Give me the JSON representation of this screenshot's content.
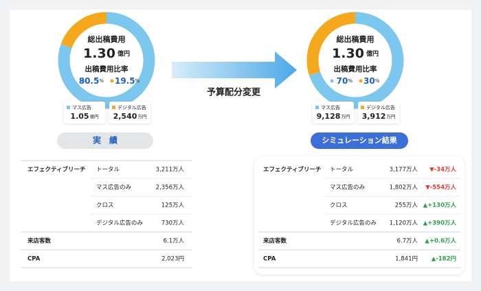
{
  "chart_data": [
    {
      "type": "pie",
      "title": "総出稿費用",
      "total": "1.30",
      "total_unit": "億円",
      "subtitle": "出稿費用比率",
      "unit": "%",
      "categories": [
        "マス広告",
        "デジタル広告"
      ],
      "values": [
        80.5,
        19.5
      ],
      "colors": [
        "#7cc7ee",
        "#f6a81c"
      ],
      "amounts": [
        "1.05",
        "2,540"
      ],
      "amount_units": [
        "億円",
        "万円"
      ]
    },
    {
      "type": "pie",
      "title": "総出稿費用",
      "total": "1.30",
      "total_unit": "億円",
      "subtitle": "出稿費用比率",
      "unit": "%",
      "categories": [
        "マス広告",
        "デジタル広告"
      ],
      "values": [
        70,
        30
      ],
      "colors": [
        "#7cc7ee",
        "#f6a81c"
      ],
      "amounts": [
        "9,128",
        "3,912"
      ],
      "amount_units": [
        "万円",
        "万円"
      ]
    }
  ],
  "labels": {
    "actual": "実　績",
    "simulation": "シミュレーション結果",
    "arrow": "予算配分変更"
  },
  "tables": [
    {
      "groups": [
        {
          "label": "エフェクティブリーチ",
          "rows": [
            {
              "item": "トータル",
              "value": "3,211万人"
            },
            {
              "item": "マス広告のみ",
              "value": "2,356万人"
            },
            {
              "item": "クロス",
              "value": "125万人"
            },
            {
              "item": "デジタル広告のみ",
              "value": "730万人"
            }
          ]
        },
        {
          "label": "来店客数",
          "rows": [
            {
              "value": "6.1万人"
            }
          ]
        },
        {
          "label": "CPA",
          "rows": [
            {
              "value": "2,023円"
            }
          ]
        }
      ]
    },
    {
      "groups": [
        {
          "label": "エフェクティブリーチ",
          "rows": [
            {
              "item": "トータル",
              "value": "3,177万人",
              "delta": "▼-34万人",
              "delta_color": "#e53935"
            },
            {
              "item": "マス広告のみ",
              "value": "1,802万人",
              "delta": "▼-554万人",
              "delta_color": "#e53935"
            },
            {
              "item": "クロス",
              "value": "255万人",
              "delta": "▲+130万人",
              "delta_color": "#2e9e4a"
            },
            {
              "item": "デジタル広告のみ",
              "value": "1,120万人",
              "delta": "▲+390万人",
              "delta_color": "#2e9e4a"
            }
          ]
        },
        {
          "label": "来店客数",
          "rows": [
            {
              "value": "6.7万人",
              "delta": "▲+0.6万人",
              "delta_color": "#2e9e4a"
            }
          ]
        },
        {
          "label": "CPA",
          "rows": [
            {
              "value": "1,841円",
              "delta": "▲-182円",
              "delta_color": "#2e9e4a"
            }
          ]
        }
      ]
    }
  ]
}
